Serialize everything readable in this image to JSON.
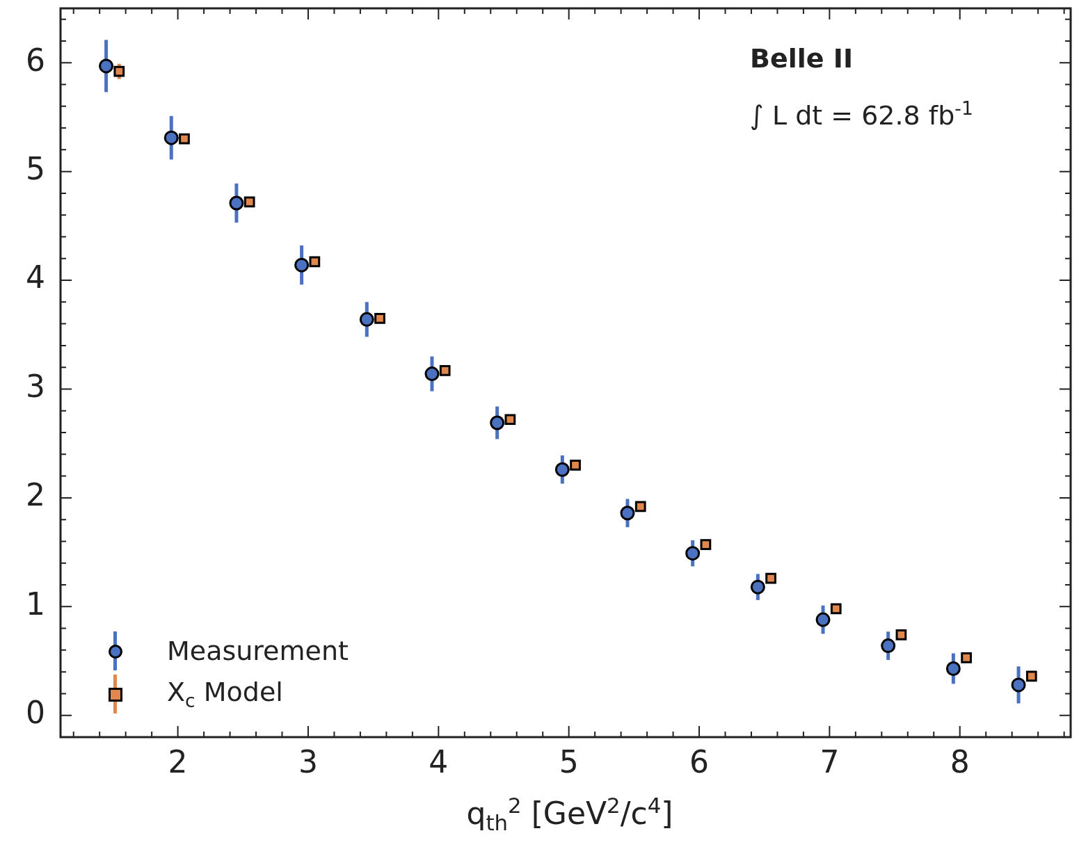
{
  "chart_data": {
    "type": "scatter",
    "xlabel": "q$_{th}$$^{2}$ [GeV$^{2}$/c$^{4}$]",
    "annotations": [
      "Belle II",
      "∫ L dt  =  62.8 fb$^{-1}$"
    ],
    "xlim": [
      1.1,
      8.85
    ],
    "ylim": [
      -0.2,
      6.5
    ],
    "xticks": [
      {
        "value": 1.2,
        "label": null
      },
      {
        "value": 1.4,
        "label": null
      },
      {
        "value": 1.6,
        "label": null
      },
      {
        "value": 1.8,
        "label": null
      },
      2,
      {
        "value": 2.2,
        "label": null
      },
      {
        "value": 2.4,
        "label": null
      },
      {
        "value": 2.6,
        "label": null
      },
      {
        "value": 2.8,
        "label": null
      },
      3,
      {
        "value": 3.2,
        "label": null
      },
      {
        "value": 3.4,
        "label": null
      },
      {
        "value": 3.6,
        "label": null
      },
      {
        "value": 3.8,
        "label": null
      },
      4,
      {
        "value": 4.2,
        "label": null
      },
      {
        "value": 4.4,
        "label": null
      },
      {
        "value": 4.6,
        "label": null
      },
      {
        "value": 4.8,
        "label": null
      },
      5,
      {
        "value": 5.2,
        "label": null
      },
      {
        "value": 5.4,
        "label": null
      },
      {
        "value": 5.6,
        "label": null
      },
      {
        "value": 5.8,
        "label": null
      },
      6,
      {
        "value": 6.2,
        "label": null
      },
      {
        "value": 6.4,
        "label": null
      },
      {
        "value": 6.6,
        "label": null
      },
      {
        "value": 6.8,
        "label": null
      },
      7,
      {
        "value": 7.2,
        "label": null
      },
      {
        "value": 7.4,
        "label": null
      },
      {
        "value": 7.6,
        "label": null
      },
      {
        "value": 7.8,
        "label": null
      },
      8,
      {
        "value": 8.2,
        "label": null
      },
      {
        "value": 8.4,
        "label": null
      },
      {
        "value": 8.6,
        "label": null
      },
      {
        "value": 8.8,
        "label": null
      }
    ],
    "yticks": [
      0,
      {
        "value": 0.2,
        "label": null
      },
      {
        "value": 0.4,
        "label": null
      },
      {
        "value": 0.6,
        "label": null
      },
      {
        "value": 0.8,
        "label": null
      },
      1,
      {
        "value": 1.2,
        "label": null
      },
      {
        "value": 1.4,
        "label": null
      },
      {
        "value": 1.6,
        "label": null
      },
      {
        "value": 1.8,
        "label": null
      },
      2,
      {
        "value": 2.2,
        "label": null
      },
      {
        "value": 2.4,
        "label": null
      },
      {
        "value": 2.6,
        "label": null
      },
      {
        "value": 2.8,
        "label": null
      },
      3,
      {
        "value": 3.2,
        "label": null
      },
      {
        "value": 3.4,
        "label": null
      },
      {
        "value": 3.6,
        "label": null
      },
      {
        "value": 3.8,
        "label": null
      },
      4,
      {
        "value": 4.2,
        "label": null
      },
      {
        "value": 4.4,
        "label": null
      },
      {
        "value": 4.6,
        "label": null
      },
      {
        "value": 4.8,
        "label": null
      },
      5,
      {
        "value": 5.2,
        "label": null
      },
      {
        "value": 5.4,
        "label": null
      },
      {
        "value": 5.6,
        "label": null
      },
      {
        "value": 5.8,
        "label": null
      },
      6,
      {
        "value": 6.2,
        "label": null
      },
      {
        "value": 6.4,
        "label": null
      }
    ],
    "legend": "bottom left",
    "series": [
      {
        "name": "Measurement",
        "color": "#4a72c0",
        "marker": "circle",
        "x": [
          1.45,
          1.95,
          2.45,
          2.95,
          3.45,
          3.95,
          4.45,
          4.95,
          5.45,
          5.95,
          6.45,
          6.95,
          7.45,
          7.95,
          8.45
        ],
        "values": [
          5.97,
          5.31,
          4.71,
          4.14,
          3.64,
          3.14,
          2.69,
          2.26,
          1.86,
          1.49,
          1.18,
          0.88,
          0.64,
          0.43,
          0.28
        ],
        "errors": [
          0.24,
          0.2,
          0.18,
          0.18,
          0.16,
          0.16,
          0.15,
          0.13,
          0.13,
          0.12,
          0.12,
          0.13,
          0.13,
          0.14,
          0.17
        ]
      },
      {
        "name": "X$_{c}$ Model",
        "color": "#e0874e",
        "marker": "square",
        "x": [
          1.55,
          2.05,
          2.55,
          3.05,
          3.55,
          4.05,
          4.55,
          5.05,
          5.55,
          6.05,
          6.55,
          7.05,
          7.55,
          8.05,
          8.55
        ],
        "values": [
          5.92,
          5.3,
          4.72,
          4.17,
          3.65,
          3.17,
          2.72,
          2.3,
          1.92,
          1.57,
          1.26,
          0.98,
          0.74,
          0.53,
          0.36
        ],
        "errors": [
          0.07,
          0.04,
          null,
          null,
          null,
          null,
          null,
          null,
          null,
          null,
          null,
          null,
          null,
          null,
          null
        ]
      }
    ]
  }
}
